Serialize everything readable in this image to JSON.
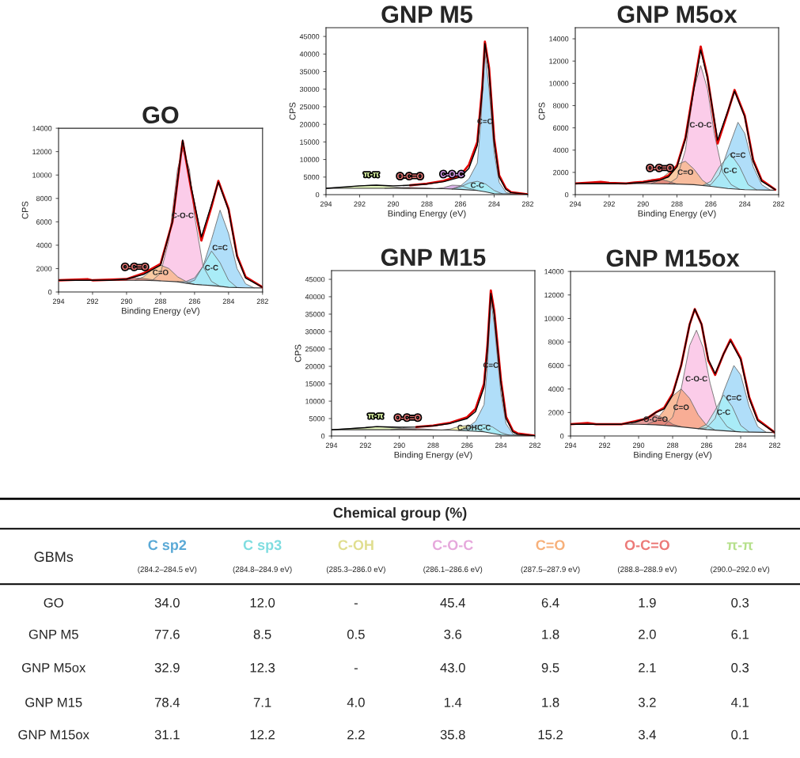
{
  "chart_data": [
    {
      "type": "area",
      "title": "GO",
      "xlabel": "Binding Energy (eV)",
      "ylabel": "CPS",
      "xlim": [
        294,
        282
      ],
      "xticks": [
        294,
        292,
        290,
        288,
        286,
        284,
        282
      ],
      "ylim": [
        0,
        14000
      ],
      "yticks": [
        0,
        2000,
        4000,
        6000,
        8000,
        10000,
        12000,
        14000
      ],
      "series": [
        {
          "type": "line",
          "color": "#333333",
          "x": [
            294,
            289,
            288,
            287,
            286.5,
            286,
            285,
            284.5,
            284,
            283,
            282
          ],
          "values": [
            1000,
            1000,
            950,
            870,
            750,
            650,
            550,
            480,
            400,
            360,
            350
          ]
        },
        {
          "type": "area",
          "name": "C-O-C",
          "color": "#f9b6e0",
          "x": [
            288.5,
            288,
            287.5,
            287,
            286.7,
            286.3,
            286,
            285.5,
            285,
            284.5
          ],
          "values": [
            980,
            1600,
            4500,
            10500,
            12200,
            10500,
            6500,
            2200,
            900,
            480
          ]
        },
        {
          "type": "area",
          "name": "C=O",
          "color": "#f7b57c",
          "x": [
            289.5,
            289,
            288.5,
            288,
            287.5,
            287,
            286.5,
            286
          ],
          "values": [
            1000,
            1300,
            1900,
            2300,
            2000,
            1300,
            900,
            650
          ]
        },
        {
          "type": "area",
          "name": "O-C=O",
          "color": "#d9706e",
          "x": [
            290.5,
            290,
            289.5,
            289,
            288.5,
            288
          ],
          "values": [
            1000,
            1100,
            1200,
            1150,
            1050,
            950
          ]
        },
        {
          "type": "area",
          "name": "C=C",
          "color": "#8fd0f7",
          "x": [
            287,
            286.5,
            286,
            285.5,
            285,
            284.5,
            284,
            283.5,
            283,
            282.5
          ],
          "values": [
            870,
            900,
            1200,
            2200,
            4500,
            7000,
            5000,
            2000,
            700,
            350
          ]
        },
        {
          "type": "area",
          "name": "C-C",
          "color": "#a6f2f7",
          "x": [
            286.5,
            286,
            285.5,
            285,
            284.5,
            284,
            283.5
          ],
          "values": [
            750,
            1000,
            2200,
            3500,
            2500,
            1000,
            380
          ]
        },
        {
          "type": "line",
          "color": "#e00000",
          "x": [
            294,
            293,
            292.3,
            292,
            290,
            289,
            288,
            287.3,
            286.7,
            286.2,
            285.6,
            285,
            284.6,
            284,
            283.5,
            283,
            282
          ],
          "values": [
            1000,
            1050,
            1100,
            1000,
            1100,
            1600,
            2400,
            6000,
            12900,
            8800,
            4400,
            7300,
            9500,
            7100,
            3100,
            1300,
            400
          ]
        },
        {
          "type": "line",
          "color": "#000000",
          "x": [
            294,
            291,
            290,
            289,
            288,
            287.3,
            286.7,
            286.2,
            285.6,
            285,
            284.6,
            284,
            283.5,
            283,
            282
          ],
          "values": [
            1000,
            1000,
            1100,
            1500,
            2300,
            6000,
            13000,
            9000,
            4700,
            7500,
            9400,
            7000,
            3000,
            1200,
            400
          ]
        }
      ]
    },
    {
      "type": "area",
      "title": "GNP M5",
      "xlabel": "Binding Energy (eV)",
      "ylabel": "CPS",
      "xlim": [
        294,
        282
      ],
      "xticks": [
        294,
        292,
        290,
        288,
        286,
        284,
        282
      ],
      "ylim": [
        0,
        47500
      ],
      "yticks": [
        0,
        5000,
        10000,
        15000,
        20000,
        25000,
        30000,
        35000,
        40000,
        45000
      ],
      "series": [
        {
          "type": "line",
          "color": "#333333",
          "x": [
            294,
            290,
            287,
            286,
            285,
            284.5,
            284,
            283,
            282
          ],
          "values": [
            1800,
            1800,
            1700,
            1500,
            1200,
            800,
            300,
            200,
            100
          ]
        },
        {
          "type": "area",
          "name": "π-π",
          "color": "#d7f0a0",
          "x": [
            294,
            293,
            292,
            291.3,
            290.5,
            289.5,
            289
          ],
          "values": [
            1800,
            2100,
            2500,
            2700,
            2500,
            2000,
            1800
          ]
        },
        {
          "type": "area",
          "name": "O-C=O",
          "color": "#d9706e",
          "x": [
            290.5,
            290,
            289.5,
            289,
            288.5,
            288,
            287.5
          ],
          "values": [
            1800,
            1900,
            2000,
            2100,
            2000,
            1900,
            1700
          ]
        },
        {
          "type": "area",
          "name": "C-O-C",
          "color": "#c58fd8",
          "x": [
            287.5,
            287,
            286.5,
            286,
            285.5,
            285
          ],
          "values": [
            1700,
            2000,
            2700,
            2600,
            1800,
            1200
          ]
        },
        {
          "type": "area",
          "name": "C=C",
          "color": "#8fd0f7",
          "x": [
            286.5,
            286,
            285.5,
            285,
            284.8,
            284.55,
            284.3,
            284,
            283.7,
            283.3,
            283
          ],
          "values": [
            1600,
            2500,
            4500,
            9000,
            20000,
            40500,
            30000,
            12000,
            3500,
            700,
            200
          ]
        },
        {
          "type": "area",
          "name": "C-C",
          "color": "#a6f2f7",
          "x": [
            286.5,
            286,
            285.5,
            285,
            284.5,
            284,
            283.5
          ],
          "values": [
            1600,
            2200,
            3300,
            3800,
            3000,
            1200,
            200
          ]
        },
        {
          "type": "line",
          "color": "#e00000",
          "x": [
            289,
            288,
            287,
            286,
            285.5,
            285,
            284.7,
            284.55,
            284.3,
            284,
            283.7,
            283.3,
            283,
            282
          ],
          "values": [
            2700,
            3100,
            3900,
            5500,
            8500,
            15000,
            31000,
            43500,
            36000,
            16000,
            5500,
            1800,
            700,
            100
          ]
        },
        {
          "type": "line",
          "color": "#000000",
          "x": [
            294,
            292,
            291,
            290,
            289,
            288,
            287,
            286,
            285.5,
            285,
            284.7,
            284.55,
            284.3,
            284,
            283.7,
            283.3,
            283,
            282
          ],
          "values": [
            1800,
            2500,
            2700,
            2500,
            2700,
            3000,
            3700,
            5000,
            7500,
            14000,
            30000,
            43000,
            35000,
            15000,
            5000,
            1500,
            600,
            100
          ]
        }
      ]
    },
    {
      "type": "area",
      "title": "GNP M5ox",
      "xlabel": "Binding Energy (eV)",
      "ylabel": "CPS",
      "xlim": [
        294,
        282
      ],
      "xticks": [
        294,
        292,
        290,
        288,
        286,
        284,
        282
      ],
      "ylim": [
        0,
        15000
      ],
      "yticks": [
        0,
        2000,
        4000,
        6000,
        8000,
        10000,
        12000,
        14000
      ],
      "series": [
        {
          "type": "line",
          "color": "#333333",
          "x": [
            294,
            290,
            288,
            287,
            286,
            285,
            284,
            282.2
          ],
          "values": [
            1000,
            1000,
            950,
            900,
            750,
            550,
            450,
            400
          ]
        },
        {
          "type": "area",
          "name": "C-O-C",
          "color": "#f9b6e0",
          "x": [
            288.5,
            288,
            287.5,
            287,
            286.6,
            286.2,
            285.8,
            285.3,
            284.8,
            284.3
          ],
          "values": [
            980,
            1500,
            4000,
            9500,
            11600,
            9500,
            5500,
            2000,
            900,
            480
          ]
        },
        {
          "type": "area",
          "name": "C=O",
          "color": "#f7b57c",
          "x": [
            289.5,
            289,
            288.5,
            288,
            287.5,
            287,
            286.5,
            286
          ],
          "values": [
            1000,
            1300,
            2000,
            2700,
            3000,
            2300,
            1300,
            750
          ]
        },
        {
          "type": "area",
          "name": "O-C=O",
          "color": "#d9706e",
          "x": [
            290.5,
            290,
            289.5,
            289,
            288.5,
            288
          ],
          "values": [
            1000,
            1150,
            1350,
            1400,
            1200,
            950
          ]
        },
        {
          "type": "area",
          "name": "C=C",
          "color": "#8fd0f7",
          "x": [
            286.5,
            286,
            285.5,
            285,
            284.4,
            284,
            283.5,
            283,
            282.5
          ],
          "values": [
            820,
            900,
            1800,
            4000,
            6500,
            5500,
            2500,
            900,
            420
          ]
        },
        {
          "type": "area",
          "name": "C-C",
          "color": "#a6f2f7",
          "x": [
            286.5,
            286,
            285.5,
            284.85,
            284.3,
            283.8,
            283.3
          ],
          "values": [
            820,
            1200,
            2500,
            3700,
            2500,
            900,
            430
          ]
        },
        {
          "type": "line",
          "color": "#e00000",
          "x": [
            294,
            293,
            292.5,
            292,
            291,
            290.5,
            290,
            289,
            288.5,
            288,
            287.5,
            287,
            286.6,
            286.2,
            285.6,
            285,
            284.6,
            284,
            283.5,
            283,
            282.2
          ],
          "values": [
            1000,
            1100,
            1150,
            1050,
            1000,
            1100,
            1150,
            1400,
            1700,
            2600,
            5100,
            9700,
            13300,
            10600,
            4600,
            7400,
            9400,
            7100,
            3100,
            1300,
            450
          ]
        },
        {
          "type": "line",
          "color": "#000000",
          "x": [
            294,
            291,
            290,
            289,
            288.5,
            288,
            287.5,
            287,
            286.6,
            286.2,
            285.6,
            285,
            284.6,
            284,
            283.5,
            283,
            282.2
          ],
          "values": [
            1000,
            1000,
            1100,
            1300,
            1600,
            2500,
            5000,
            9500,
            13000,
            10500,
            4900,
            7500,
            9300,
            7000,
            3000,
            1200,
            450
          ]
        }
      ]
    },
    {
      "type": "area",
      "title": "GNP M15",
      "xlabel": "Binding Energy (eV)",
      "ylabel": "CPS",
      "xlim": [
        294,
        282
      ],
      "xticks": [
        294,
        292,
        290,
        288,
        286,
        284,
        282
      ],
      "ylim": [
        0,
        47500
      ],
      "yticks": [
        0,
        5000,
        10000,
        15000,
        20000,
        25000,
        30000,
        35000,
        40000,
        45000
      ],
      "series": [
        {
          "type": "line",
          "color": "#333333",
          "x": [
            294,
            290,
            287,
            286,
            285,
            284,
            282
          ],
          "values": [
            1800,
            1800,
            1700,
            1500,
            1200,
            300,
            100
          ]
        },
        {
          "type": "area",
          "name": "π-π",
          "color": "#d7f0a0",
          "x": [
            294,
            293,
            292,
            291.4,
            290.5,
            289.5,
            289
          ],
          "values": [
            1800,
            2100,
            2500,
            2700,
            2400,
            2000,
            1800
          ]
        },
        {
          "type": "area",
          "name": "O-C=O",
          "color": "#d9706e",
          "x": [
            290.5,
            290,
            289.5,
            289,
            288.5,
            288,
            287.5
          ],
          "values": [
            1800,
            2000,
            2100,
            2100,
            2000,
            1800,
            1700
          ]
        },
        {
          "type": "area",
          "name": "C-OH",
          "color": "#f2ee88",
          "x": [
            287.5,
            287,
            286.5,
            286,
            285.5,
            285
          ],
          "values": [
            1700,
            2000,
            2700,
            3000,
            2300,
            1200
          ]
        },
        {
          "type": "area",
          "name": "C=C",
          "color": "#8fd0f7",
          "x": [
            286.5,
            286,
            285.5,
            285,
            284.8,
            284.6,
            284.4,
            284,
            283.7,
            283.3,
            283
          ],
          "values": [
            1600,
            2400,
            4200,
            9000,
            20000,
            39500,
            32000,
            12000,
            3500,
            600,
            200
          ]
        },
        {
          "type": "area",
          "name": "C-C",
          "color": "#a6f2f7",
          "x": [
            286.5,
            286,
            285.5,
            285,
            284.5,
            284,
            283.5
          ],
          "values": [
            1600,
            2000,
            2900,
            3300,
            2600,
            1000,
            200
          ]
        },
        {
          "type": "line",
          "color": "#e00000",
          "x": [
            289,
            288,
            287,
            286,
            285.5,
            285,
            284.8,
            284.6,
            284.4,
            284,
            283.7,
            283.3,
            283,
            282
          ],
          "values": [
            2600,
            3000,
            3800,
            5400,
            7800,
            15000,
            26000,
            41800,
            36000,
            16000,
            5500,
            1500,
            700,
            100
          ]
        },
        {
          "type": "line",
          "color": "#000000",
          "x": [
            294,
            292,
            291.3,
            290,
            289,
            288,
            287,
            286,
            285.5,
            285,
            284.8,
            284.6,
            284.4,
            284,
            283.7,
            283.3,
            283,
            282
          ],
          "values": [
            1800,
            2400,
            2700,
            2500,
            2600,
            2900,
            3600,
            5000,
            7000,
            14000,
            25000,
            41000,
            35000,
            15000,
            5000,
            1200,
            500,
            100
          ]
        }
      ]
    },
    {
      "type": "area",
      "title": "GNP M15ox",
      "xlabel": "Binding Energy (eV)",
      "xlim": [
        294,
        282
      ],
      "xticks": [
        294,
        292,
        290,
        288,
        286,
        284,
        282
      ],
      "ylim": [
        0,
        14000
      ],
      "yticks": [
        0,
        2000,
        4000,
        6000,
        8000,
        10000,
        12000,
        14000
      ],
      "series": [
        {
          "type": "line",
          "color": "#333333",
          "x": [
            294,
            290,
            289,
            288,
            287,
            286,
            285,
            284,
            282
          ],
          "values": [
            1000,
            1000,
            950,
            850,
            700,
            550,
            450,
            350,
            300
          ]
        },
        {
          "type": "area",
          "name": "C-O-C",
          "color": "#f9b6e0",
          "x": [
            288.5,
            288,
            287.5,
            287,
            286.6,
            286.2,
            285.8,
            285.3,
            284.8,
            284.3
          ],
          "values": [
            900,
            1600,
            4000,
            7700,
            9000,
            7500,
            4500,
            1800,
            800,
            380
          ]
        },
        {
          "type": "area",
          "name": "C=O",
          "color": "#f7a070",
          "x": [
            289.5,
            289,
            288.5,
            288,
            287.5,
            287,
            286.5,
            286,
            285.5
          ],
          "values": [
            1000,
            1300,
            2200,
            3400,
            4000,
            3200,
            1800,
            900,
            500
          ]
        },
        {
          "type": "area",
          "name": "O-C=O",
          "color": "#d9706e",
          "x": [
            290.5,
            290,
            289.5,
            289,
            288.5,
            288,
            287.5
          ],
          "values": [
            1000,
            1200,
            1600,
            1800,
            1500,
            1000,
            780
          ]
        },
        {
          "type": "area",
          "name": "C=C",
          "color": "#8fd0f7",
          "x": [
            286.5,
            286,
            285.5,
            285,
            284.4,
            284,
            283.5,
            283,
            282.5
          ],
          "values": [
            620,
            700,
            1500,
            3800,
            6000,
            5200,
            2500,
            800,
            320
          ]
        },
        {
          "type": "area",
          "name": "C-C",
          "color": "#a6f2f7",
          "x": [
            286.5,
            286,
            285.5,
            285,
            284.5,
            284,
            283.5
          ],
          "values": [
            620,
            1000,
            2200,
            3500,
            2500,
            900,
            340
          ]
        },
        {
          "type": "line",
          "color": "#e00000",
          "x": [
            294,
            293,
            292.5,
            291,
            290.2,
            289.5,
            289,
            288.5,
            288,
            287.5,
            287,
            286.7,
            286.3,
            285.9,
            285.5,
            285,
            284.6,
            284,
            283.5,
            283,
            282
          ],
          "values": [
            1000,
            1100,
            1000,
            1000,
            1250,
            1500,
            2000,
            2400,
            3600,
            6000,
            9500,
            10800,
            9500,
            6400,
            5200,
            7000,
            8200,
            6600,
            3300,
            1400,
            300
          ]
        },
        {
          "type": "line",
          "color": "#000000",
          "x": [
            294,
            291,
            290.2,
            289.5,
            289,
            288.5,
            288,
            287.5,
            287,
            286.7,
            286.3,
            285.9,
            285.5,
            285,
            284.6,
            284,
            283.5,
            283,
            282
          ],
          "values": [
            1000,
            1000,
            1200,
            1500,
            2000,
            2300,
            3500,
            6000,
            9500,
            10800,
            9500,
            6500,
            5300,
            7000,
            8100,
            6500,
            3200,
            1300,
            300
          ]
        }
      ]
    },
    {
      "type": "other",
      "title": "Chemical group (%)",
      "ylabel": "GBMs",
      "categories": [
        "C sp2\n(284.2–284.5 eV)",
        "C sp3\n(284.8–284.9 eV)",
        "C-OH\n(285.3–286.0 eV)",
        "C-O-C\n(286.1–286.6 eV)",
        "C=O\n(287.5–287.9 eV)",
        "O-C=O\n(288.8–288.9 eV)",
        "π-π\n(290.0–292.0 eV)"
      ],
      "colors": [
        "#5aa9d6",
        "#7fdde0",
        "#e0de8f",
        "#e6a8dc",
        "#f7b07a",
        "#ec7a78",
        "#b5e08a"
      ],
      "y_categories": [
        "GO",
        "GNP M5",
        "GNP M5ox",
        "GNP M15",
        "GNP M15ox"
      ],
      "cell_labels": [
        [
          "34.0",
          "12.0",
          "-",
          "45.4",
          "6.4",
          "1.9",
          "0.3"
        ],
        [
          "77.6",
          "8.5",
          "0.5",
          "3.6",
          "1.8",
          "2.0",
          "6.1"
        ],
        [
          "32.9",
          "12.3",
          "-",
          "43.0",
          "9.5",
          "2.1",
          "0.3"
        ],
        [
          "78.4",
          "7.1",
          "4.0",
          "1.4",
          "1.8",
          "3.2",
          "4.1"
        ],
        [
          "31.1",
          "12.2",
          "2.2",
          "35.8",
          "15.2",
          "3.4",
          "0.1"
        ]
      ]
    }
  ]
}
